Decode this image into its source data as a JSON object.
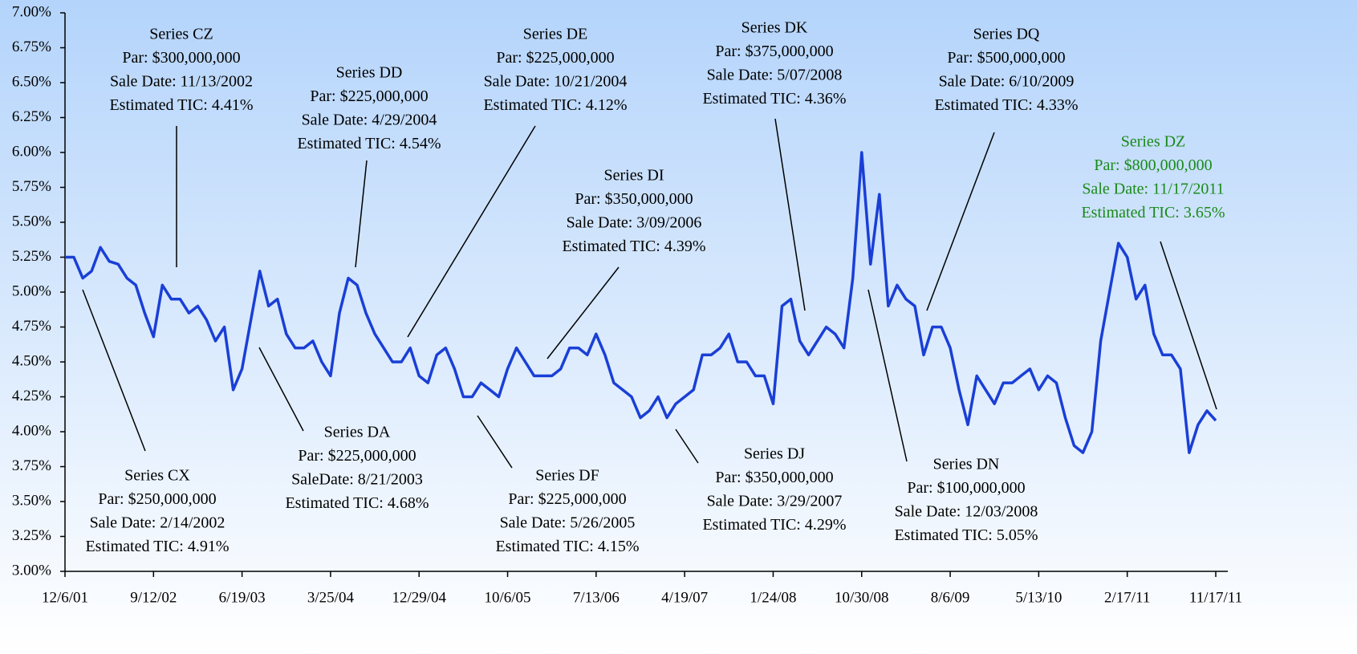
{
  "chart_data": {
    "type": "line",
    "categories": [
      "12/6/01",
      null,
      null,
      null,
      null,
      null,
      null,
      null,
      null,
      null,
      "9/12/02",
      null,
      null,
      null,
      null,
      null,
      null,
      null,
      null,
      null,
      "6/19/03",
      null,
      null,
      null,
      null,
      null,
      null,
      null,
      null,
      null,
      "3/25/04",
      null,
      null,
      null,
      null,
      null,
      null,
      null,
      null,
      null,
      "12/29/04",
      null,
      null,
      null,
      null,
      null,
      null,
      null,
      null,
      null,
      "10/6/05",
      null,
      null,
      null,
      null,
      null,
      null,
      null,
      null,
      null,
      "7/13/06",
      null,
      null,
      null,
      null,
      null,
      null,
      null,
      null,
      null,
      "4/19/07",
      null,
      null,
      null,
      null,
      null,
      null,
      null,
      null,
      null,
      "1/24/08",
      null,
      null,
      null,
      null,
      null,
      null,
      null,
      null,
      null,
      "10/30/08",
      null,
      null,
      null,
      null,
      null,
      null,
      null,
      null,
      null,
      "8/6/09",
      null,
      null,
      null,
      null,
      null,
      null,
      null,
      null,
      null,
      "5/13/10",
      null,
      null,
      null,
      null,
      null,
      null,
      null,
      null,
      null,
      "2/17/11",
      null,
      null,
      null,
      null,
      null,
      null,
      null,
      null,
      null,
      "11/17/11"
    ],
    "values": [
      5.25,
      5.25,
      5.1,
      5.15,
      5.32,
      5.22,
      5.2,
      5.1,
      5.05,
      4.85,
      4.68,
      5.05,
      4.95,
      4.95,
      4.85,
      4.9,
      4.8,
      4.65,
      4.75,
      4.3,
      4.45,
      4.8,
      5.15,
      4.9,
      4.95,
      4.7,
      4.6,
      4.6,
      4.65,
      4.5,
      4.4,
      4.85,
      5.1,
      5.05,
      4.85,
      4.7,
      4.6,
      4.5,
      4.5,
      4.6,
      4.4,
      4.35,
      4.55,
      4.6,
      4.45,
      4.25,
      4.25,
      4.35,
      4.3,
      4.25,
      4.45,
      4.6,
      4.5,
      4.4,
      4.4,
      4.4,
      4.45,
      4.6,
      4.6,
      4.55,
      4.7,
      4.55,
      4.35,
      4.3,
      4.25,
      4.1,
      4.15,
      4.25,
      4.1,
      4.2,
      4.25,
      4.3,
      4.55,
      4.55,
      4.6,
      4.7,
      4.5,
      4.5,
      4.4,
      4.4,
      4.2,
      4.9,
      4.95,
      4.65,
      4.55,
      4.65,
      4.75,
      4.7,
      4.6,
      5.1,
      6.0,
      5.2,
      5.7,
      4.9,
      5.05,
      4.95,
      4.9,
      4.55,
      4.75,
      4.75,
      4.6,
      4.3,
      4.05,
      4.4,
      4.3,
      4.2,
      4.35,
      4.35,
      4.4,
      4.45,
      4.3,
      4.4,
      4.35,
      4.1,
      3.9,
      3.85,
      4.0,
      4.65,
      5.0,
      5.35,
      5.25,
      4.95,
      5.05,
      4.7,
      4.55,
      4.55,
      4.45,
      3.85,
      4.05,
      4.15,
      4.08
    ],
    "color": "#1a3fd6",
    "ylim": [
      3,
      7
    ],
    "yticks": [
      {
        "value": 3,
        "label": "3.00%"
      },
      {
        "value": 3.25,
        "label": "3.25%"
      },
      {
        "value": 3.5,
        "label": "3.50%"
      },
      {
        "value": 3.75,
        "label": "3.75%"
      },
      {
        "value": 4,
        "label": "4.00%"
      },
      {
        "value": 4.25,
        "label": "4.25%"
      },
      {
        "value": 4.5,
        "label": "4.50%"
      },
      {
        "value": 4.75,
        "label": "4.75%"
      },
      {
        "value": 5,
        "label": "5.00%"
      },
      {
        "value": 5.25,
        "label": "5.25%"
      },
      {
        "value": 5.5,
        "label": "5.50%"
      },
      {
        "value": 5.75,
        "label": "5.75%"
      },
      {
        "value": 6,
        "label": "6.00%"
      },
      {
        "value": 6.25,
        "label": "6.25%"
      },
      {
        "value": 6.5,
        "label": "6.50%"
      },
      {
        "value": 6.75,
        "label": "6.75%"
      },
      {
        "value": 7,
        "label": "7.00%"
      }
    ],
    "grid": false,
    "annotations": [
      {
        "lines": [
          "Series CZ",
          "Par: $300,000,000",
          "Sale Date: 11/13/2002",
          "Estimated TIC: 4.41%"
        ],
        "color": "#000000"
      },
      {
        "lines": [
          "Series CX",
          "Par: $250,000,000",
          "Sale Date: 2/14/2002",
          "Estimated TIC: 4.91%"
        ],
        "color": "#000000"
      },
      {
        "lines": [
          "Series DD",
          "Par: $225,000,000",
          "Sale Date: 4/29/2004",
          "Estimated TIC: 4.54%"
        ],
        "color": "#000000"
      },
      {
        "lines": [
          "Series DA",
          "Par: $225,000,000",
          "SaleDate: 8/21/2003",
          "Estimated TIC: 4.68%"
        ],
        "color": "#000000"
      },
      {
        "lines": [
          "Series DE",
          "Par: $225,000,000",
          "Sale Date: 10/21/2004",
          "Estimated TIC: 4.12%"
        ],
        "color": "#000000"
      },
      {
        "lines": [
          "Series DI",
          "Par: $350,000,000",
          "Sale Date: 3/09/2006",
          "Estimated TIC: 4.39%"
        ],
        "color": "#000000"
      },
      {
        "lines": [
          "Series DF",
          "Par: $225,000,000",
          "Sale Date: 5/26/2005",
          "Estimated TIC: 4.15%"
        ],
        "color": "#000000"
      },
      {
        "lines": [
          "Series DK",
          "Par: $375,000,000",
          "Sale Date: 5/07/2008",
          "Estimated TIC: 4.36%"
        ],
        "color": "#000000"
      },
      {
        "lines": [
          "Series DJ",
          "Par: $350,000,000",
          "Sale Date: 3/29/2007",
          "Estimated TIC: 4.29%"
        ],
        "color": "#000000"
      },
      {
        "lines": [
          "Series DQ",
          "Par: $500,000,000",
          "Sale Date: 6/10/2009",
          "Estimated TIC: 4.33%"
        ],
        "color": "#000000"
      },
      {
        "lines": [
          "Series DN",
          "Par: $100,000,000",
          "Sale Date: 12/03/2008",
          "Estimated TIC: 5.05%"
        ],
        "color": "#000000"
      },
      {
        "lines": [
          "Series DZ",
          "Par: $800,000,000",
          "Sale Date: 11/17/2011",
          "Estimated TIC: 3.65%"
        ],
        "color": "#1a8a1a"
      }
    ]
  }
}
